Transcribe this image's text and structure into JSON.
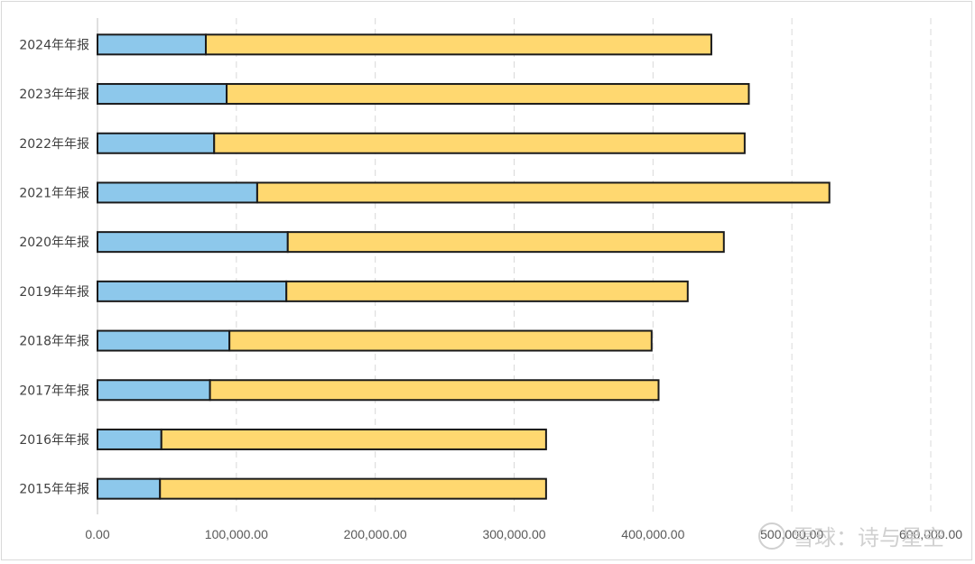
{
  "chart_data": {
    "type": "bar",
    "orientation": "horizontal",
    "stacked": true,
    "categories": [
      "2024年年报",
      "2023年年报",
      "2022年年报",
      "2021年年报",
      "2020年年报",
      "2019年年报",
      "2018年年报",
      "2017年年报",
      "2016年年报",
      "2015年年报"
    ],
    "series": [
      {
        "values": [
          78000,
          93000,
          84000,
          115000,
          137000,
          136000,
          95000,
          81000,
          46000,
          45000
        ],
        "color": "#8DC8EB"
      },
      {
        "values": [
          364000,
          376000,
          382000,
          412000,
          314000,
          289000,
          304000,
          323000,
          277000,
          278000
        ],
        "color": "#FFD870"
      }
    ],
    "xlim": [
      0,
      600000
    ],
    "x_ticks": [
      "0.00",
      "100,000.00",
      "200,000.00",
      "300,000.00",
      "400,000.00",
      "500,000.00",
      "600,000.00"
    ],
    "x_tick_values": [
      0,
      100000,
      200000,
      300000,
      400000,
      500000,
      600000
    ],
    "grid": "vertical dashed",
    "legend": "none"
  },
  "watermark": {
    "text": "雪球：诗与星空",
    "icon": "snowball-logo-icon"
  }
}
